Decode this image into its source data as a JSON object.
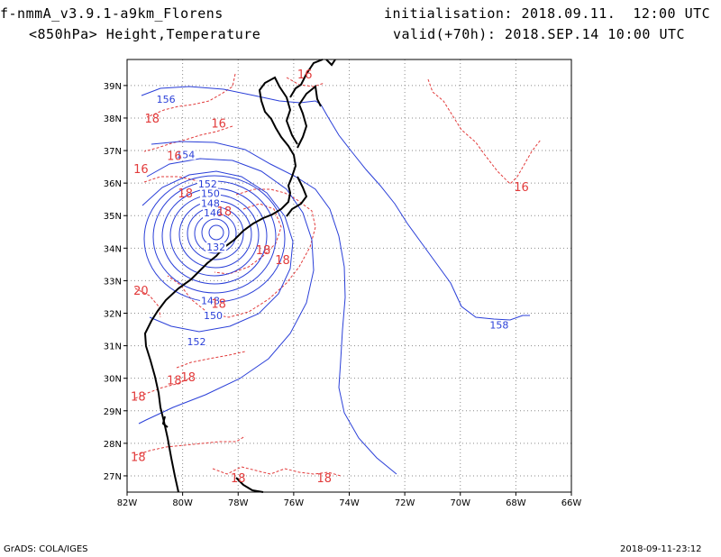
{
  "header": {
    "model": "f-nmmA_v3.9.1-a9km_Florens",
    "level": "<850hPa> Height,Temperature",
    "init": "initialisation: 2018.09.11.  12:00 UTC",
    "valid": "valid(+70h): 2018.SEP.14 10:00 UTC"
  },
  "map": {
    "lon_range": [
      -82,
      -66
    ],
    "lat_range": [
      26.5,
      39.8
    ],
    "lon_ticks": [
      {
        "v": -82,
        "label": "82W"
      },
      {
        "v": -80,
        "label": "80W"
      },
      {
        "v": -78,
        "label": "78W"
      },
      {
        "v": -76,
        "label": "76W"
      },
      {
        "v": -74,
        "label": "74W"
      },
      {
        "v": -72,
        "label": "72W"
      },
      {
        "v": -70,
        "label": "70W"
      },
      {
        "v": -68,
        "label": "68W"
      },
      {
        "v": -66,
        "label": "66W"
      }
    ],
    "lat_ticks": [
      {
        "v": 27,
        "label": "27N"
      },
      {
        "v": 28,
        "label": "28N"
      },
      {
        "v": 29,
        "label": "29N"
      },
      {
        "v": 30,
        "label": "30N"
      },
      {
        "v": 31,
        "label": "31N"
      },
      {
        "v": 32,
        "label": "32N"
      },
      {
        "v": 33,
        "label": "33N"
      },
      {
        "v": 34,
        "label": "34N"
      },
      {
        "v": 35,
        "label": "35N"
      },
      {
        "v": 36,
        "label": "36N"
      },
      {
        "v": 37,
        "label": "37N"
      },
      {
        "v": 38,
        "label": "38N"
      },
      {
        "v": 39,
        "label": "39N"
      }
    ],
    "grid": true,
    "colors": {
      "height": "#2a3fd8",
      "temperature": "#e23b3b",
      "coast": "#000000",
      "grid": "#8a8a8a"
    },
    "height_labels": [
      {
        "text": "156",
        "lon": -80.6,
        "lat": 38.5
      },
      {
        "text": "154",
        "lon": -79.9,
        "lat": 36.8
      },
      {
        "text": "152",
        "lon": -79.1,
        "lat": 35.9
      },
      {
        "text": "150",
        "lon": -79.0,
        "lat": 35.6
      },
      {
        "text": "148",
        "lon": -79.0,
        "lat": 35.3
      },
      {
        "text": "146",
        "lon": -78.9,
        "lat": 35.0
      },
      {
        "text": "132",
        "lon": -78.8,
        "lat": 33.95
      },
      {
        "text": "148",
        "lon": -79.0,
        "lat": 32.3
      },
      {
        "text": "150",
        "lon": -78.9,
        "lat": 31.85
      },
      {
        "text": "152",
        "lon": -79.5,
        "lat": 31.05
      },
      {
        "text": "158",
        "lon": -68.6,
        "lat": 31.55
      }
    ],
    "temperature_labels": [
      {
        "text": "16",
        "lon": -75.6,
        "lat": 39.35
      },
      {
        "text": "18",
        "lon": -81.1,
        "lat": 38.0
      },
      {
        "text": "16",
        "lon": -78.7,
        "lat": 37.85
      },
      {
        "text": "16",
        "lon": -80.3,
        "lat": 36.85
      },
      {
        "text": "16",
        "lon": -81.5,
        "lat": 36.45
      },
      {
        "text": "16",
        "lon": -67.8,
        "lat": 35.9
      },
      {
        "text": "18",
        "lon": -79.9,
        "lat": 35.7
      },
      {
        "text": "18",
        "lon": -78.5,
        "lat": 35.15
      },
      {
        "text": "18",
        "lon": -77.1,
        "lat": 33.95
      },
      {
        "text": "18",
        "lon": -76.4,
        "lat": 33.65
      },
      {
        "text": "20",
        "lon": -81.5,
        "lat": 32.7
      },
      {
        "text": "18",
        "lon": -78.7,
        "lat": 32.3
      },
      {
        "text": "18",
        "lon": -80.3,
        "lat": 29.95
      },
      {
        "text": "18",
        "lon": -79.8,
        "lat": 30.05
      },
      {
        "text": "18",
        "lon": -81.6,
        "lat": 29.45
      },
      {
        "text": "18",
        "lon": -81.6,
        "lat": 27.6
      },
      {
        "text": "18",
        "lon": -78.0,
        "lat": 26.95
      },
      {
        "text": "18",
        "lon": -74.9,
        "lat": 26.95
      }
    ]
  },
  "footer": {
    "left": "GrADS: COLA/IGES",
    "right": "2018-09-11-23:12"
  }
}
